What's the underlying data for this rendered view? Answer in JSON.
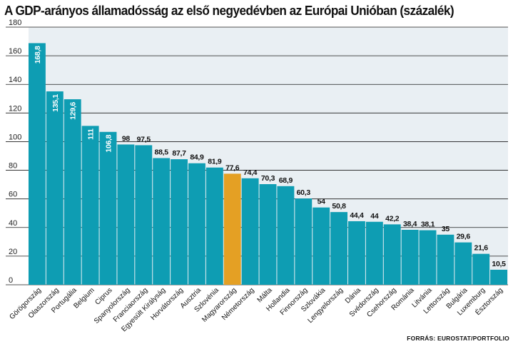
{
  "title": "A GDP-arányos államadósság az első negyedévben az Európai Unióban (százalék)",
  "source": "FORRÁS: EUROSTAT/PORTFOLIO",
  "colors": {
    "bar": "#0e9db3",
    "highlight": "#e4a024",
    "grid": "#1a1a1a",
    "background": "#e9eff3"
  },
  "chart_data": {
    "type": "bar",
    "title": "A GDP-arányos államadósság az első negyedévben az Európai Unióban (százalék)",
    "xlabel": "",
    "ylabel": "",
    "ylim": [
      0,
      180
    ],
    "yticks": [
      0,
      20,
      40,
      60,
      80,
      100,
      120,
      140,
      160,
      180
    ],
    "grid": true,
    "legend": "none",
    "highlight_category": "Magyarország",
    "categories": [
      "Görögország",
      "Olaszország",
      "Portugália",
      "Belgium",
      "Ciprus",
      "Spanyolország",
      "Franciaország",
      "Egyesült Királyság",
      "Horvátország",
      "Ausztria",
      "Szlovénia",
      "Magyarország",
      "Németország",
      "Málta",
      "Hollandia",
      "Finnország",
      "Szlovákia",
      "Lengyelország",
      "Dánia",
      "Svédország",
      "Csehország",
      "Románia",
      "Litvánia",
      "Lettország",
      "Bulgária",
      "Luxemburg",
      "Észtország"
    ],
    "values": [
      168.8,
      135.1,
      129.6,
      111,
      106.8,
      98,
      97.5,
      88.5,
      87.7,
      84.9,
      81.9,
      77.6,
      74.4,
      70.3,
      68.9,
      60.3,
      54,
      50.8,
      44.4,
      44,
      42.2,
      38.4,
      38.1,
      35,
      29.6,
      21.6,
      10.5
    ],
    "value_labels": [
      "168,8",
      "135,1",
      "129,6",
      "111",
      "106,8",
      "98",
      "97,5",
      "88,5",
      "87,7",
      "84,9",
      "81,9",
      "77,6",
      "74,4",
      "70,3",
      "68,9",
      "60,3",
      "54",
      "50,8",
      "44,4",
      "44",
      "42,2",
      "38,4",
      "38,1",
      "35",
      "29,6",
      "21,6",
      "10,5"
    ]
  }
}
